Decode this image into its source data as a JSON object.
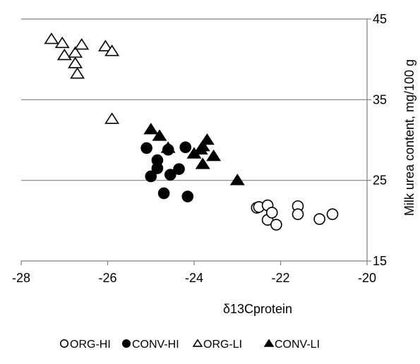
{
  "chart_data": {
    "type": "scatter",
    "title": "",
    "xlabel": "δ13Cprotein",
    "ylabel": "Milk urea content, mg/100 g",
    "xlim": [
      -28,
      -20
    ],
    "ylim": [
      15,
      45
    ],
    "x_ticks": [
      -28,
      -26,
      -24,
      -22,
      -20
    ],
    "y_ticks": [
      15,
      25,
      35,
      45
    ],
    "y_axis_side": "right",
    "grid": "horizontal",
    "legend_position": "bottom",
    "series": [
      {
        "name": "ORG-HI",
        "marker": "circle-open",
        "x": [
          -22.55,
          -22.5,
          -22.3,
          -22.3,
          -22.2,
          -22.1,
          -21.6,
          -21.6,
          -21.1,
          -20.8
        ],
        "y": [
          21.6,
          21.7,
          21.9,
          20.1,
          21.0,
          19.5,
          21.8,
          20.8,
          20.2,
          20.8
        ]
      },
      {
        "name": "CONV-HI",
        "marker": "circle-filled",
        "x": [
          -25.1,
          -25.0,
          -24.85,
          -24.85,
          -24.7,
          -24.6,
          -24.55,
          -24.35,
          -24.2,
          -24.15
        ],
        "y": [
          29.0,
          25.5,
          27.5,
          26.5,
          23.4,
          28.8,
          25.7,
          26.4,
          29.1,
          23.0
        ]
      },
      {
        "name": "ORG-LI",
        "marker": "triangle-open",
        "x": [
          -27.3,
          -27.05,
          -27.0,
          -26.75,
          -26.75,
          -26.7,
          -26.6,
          -26.05,
          -25.9,
          -25.9
        ],
        "y": [
          42.5,
          42.0,
          40.5,
          40.8,
          39.5,
          38.2,
          41.8,
          41.6,
          41.0,
          32.6
        ]
      },
      {
        "name": "CONV-LI",
        "marker": "triangle-filled",
        "x": [
          -25.0,
          -24.8,
          -24.6,
          -24.0,
          -23.85,
          -23.8,
          -23.8,
          -23.7,
          -23.55,
          -23.0
        ],
        "y": [
          31.3,
          30.5,
          29.0,
          28.3,
          28.8,
          27.0,
          29.2,
          30.0,
          28.0,
          25.0
        ]
      }
    ]
  }
}
